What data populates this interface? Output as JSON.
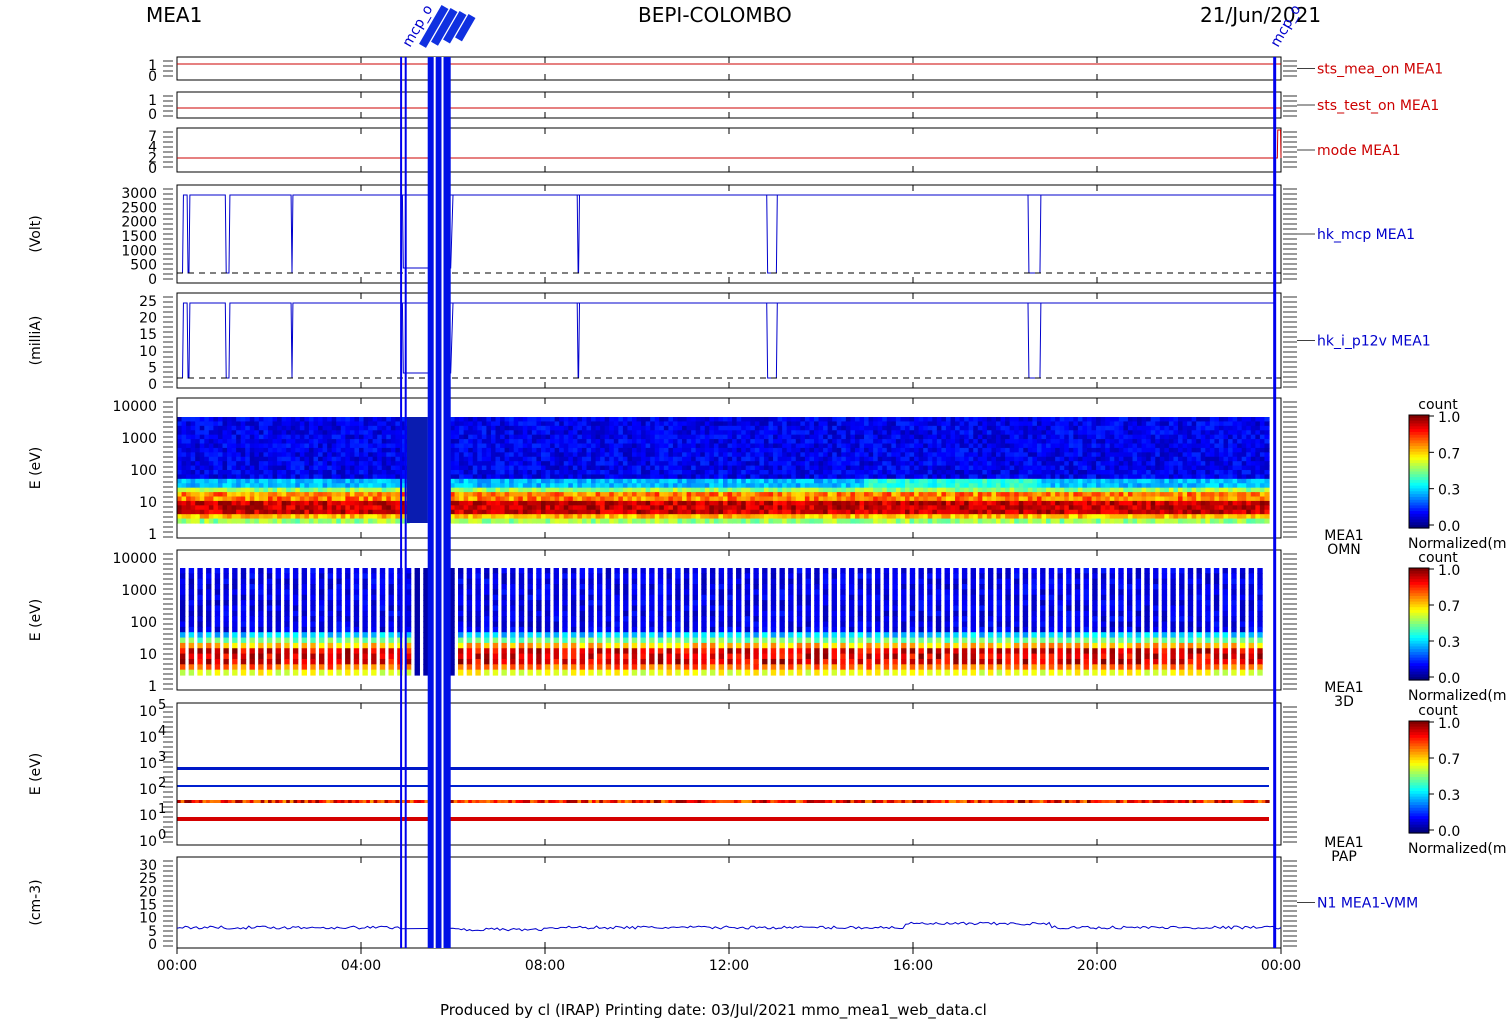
{
  "header": {
    "left": "MEA1",
    "center": "BEPI-COLOMBO",
    "right": "21/Jun/2021"
  },
  "footer": "Produced by cl (IRAP)    Printing date: 03/Jul/2021    mmo_mea1_web_data.cl",
  "time_axis": {
    "ticks": [
      "00:00",
      "04:00",
      "08:00",
      "12:00",
      "16:00",
      "20:00",
      "00:00"
    ]
  },
  "annotations": {
    "top_left": "mcp_o",
    "top_right": "mcp_o"
  },
  "panels": [
    {
      "name": "sts_mea_on MEA1",
      "ylabel": "",
      "yticks": [
        "1",
        "0"
      ],
      "color": "#cc0000"
    },
    {
      "name": "sts_test_on MEA1",
      "ylabel": "",
      "yticks": [
        "1",
        "0"
      ],
      "color": "#cc0000"
    },
    {
      "name": "mode MEA1",
      "ylabel": "",
      "yticks": [
        "7",
        "4",
        "2",
        "0"
      ],
      "color": "#cc0000"
    },
    {
      "name": "hk_mcp MEA1",
      "ylabel": "(Volt)",
      "yticks": [
        "3000",
        "2500",
        "2000",
        "1500",
        "1000",
        "500",
        "0"
      ],
      "color": "#0000cc"
    },
    {
      "name": "hk_i_p12v MEA1",
      "ylabel": "(milliA)",
      "yticks": [
        "25",
        "20",
        "15",
        "10",
        "5",
        "0"
      ],
      "color": "#0000cc"
    },
    {
      "name": "MEA1 OMN",
      "name1": "MEA1",
      "name2": "OMN",
      "ylabel": "E (eV)",
      "yticks": [
        "10000",
        "1000",
        "100",
        "10",
        "1"
      ],
      "color": "#000000"
    },
    {
      "name": "MEA1 3D",
      "name1": "MEA1",
      "name2": "3D",
      "ylabel": "E (eV)",
      "yticks": [
        "10000",
        "1000",
        "100",
        "10",
        "1"
      ],
      "color": "#000000"
    },
    {
      "name": "MEA1 PAP",
      "name1": "MEA1",
      "name2": "PAP",
      "ylabel": "E (eV)",
      "yticks": [
        "10",
        "10",
        "10",
        "10",
        "10",
        "10"
      ],
      "ysup": [
        "5",
        "4",
        "3",
        "2",
        "1",
        "0"
      ],
      "color": "#000000"
    },
    {
      "name": "N1 MEA1-VMM",
      "ylabel": "(cm-3)",
      "yticks": [
        "30",
        "25",
        "20",
        "15",
        "10",
        "5",
        "0"
      ],
      "color": "#0000cc"
    }
  ],
  "colorbars": [
    {
      "title": "count",
      "ticks": [
        "1.0",
        "0.7",
        "0.3",
        "0.0"
      ],
      "unit": "Normalized(m"
    },
    {
      "title": "count",
      "ticks": [
        "1.0",
        "0.7",
        "0.3",
        "0.0"
      ],
      "unit": "Normalized(m"
    },
    {
      "title": "count",
      "ticks": [
        "1.0",
        "0.7",
        "0.3",
        "0.0"
      ],
      "unit": "Normalized(m"
    }
  ],
  "chart_data": {
    "type": "line",
    "title": "BEPI-COLOMBO",
    "date": "21/Jun/2021",
    "xlabel": "",
    "x_range": [
      "00:00",
      "24:00"
    ],
    "series": [
      {
        "name": "sts_mea_on MEA1",
        "ylim": [
          0,
          1
        ],
        "x_hours": [
          0,
          24
        ],
        "values": [
          1,
          1
        ]
      },
      {
        "name": "sts_test_on MEA1",
        "ylim": [
          0,
          1
        ],
        "x_hours": [
          0,
          24
        ],
        "values": [
          0,
          0
        ]
      },
      {
        "name": "mode MEA1",
        "ylim": [
          0,
          7
        ],
        "x_hours": [
          0,
          23.9,
          23.95,
          24
        ],
        "values": [
          2,
          2,
          7,
          2
        ]
      },
      {
        "name": "hk_mcp MEA1",
        "ylabel": "(Volt)",
        "ylim": [
          0,
          3000
        ],
        "dips_hours": [
          [
            0.22,
            0.28
          ],
          [
            1.05,
            1.15
          ],
          [
            2.48,
            2.52
          ],
          [
            8.7,
            8.75
          ],
          [
            12.82,
            13.05
          ],
          [
            18.5,
            18.78
          ]
        ],
        "high": 2800,
        "low": 0
      },
      {
        "name": "hk_i_p12v MEA1",
        "ylabel": "(milliA)",
        "ylim": [
          0,
          25
        ],
        "dips_hours": [
          [
            0.22,
            0.28
          ],
          [
            1.05,
            1.15
          ],
          [
            2.48,
            2.52
          ],
          [
            8.7,
            8.75
          ],
          [
            12.82,
            13.05
          ],
          [
            18.5,
            18.78
          ]
        ],
        "high": 25,
        "low": 0
      },
      {
        "name": "N1 MEA1-VMM",
        "ylabel": "(cm-3)",
        "ylim": [
          0,
          30
        ],
        "typical": 5
      }
    ]
  }
}
